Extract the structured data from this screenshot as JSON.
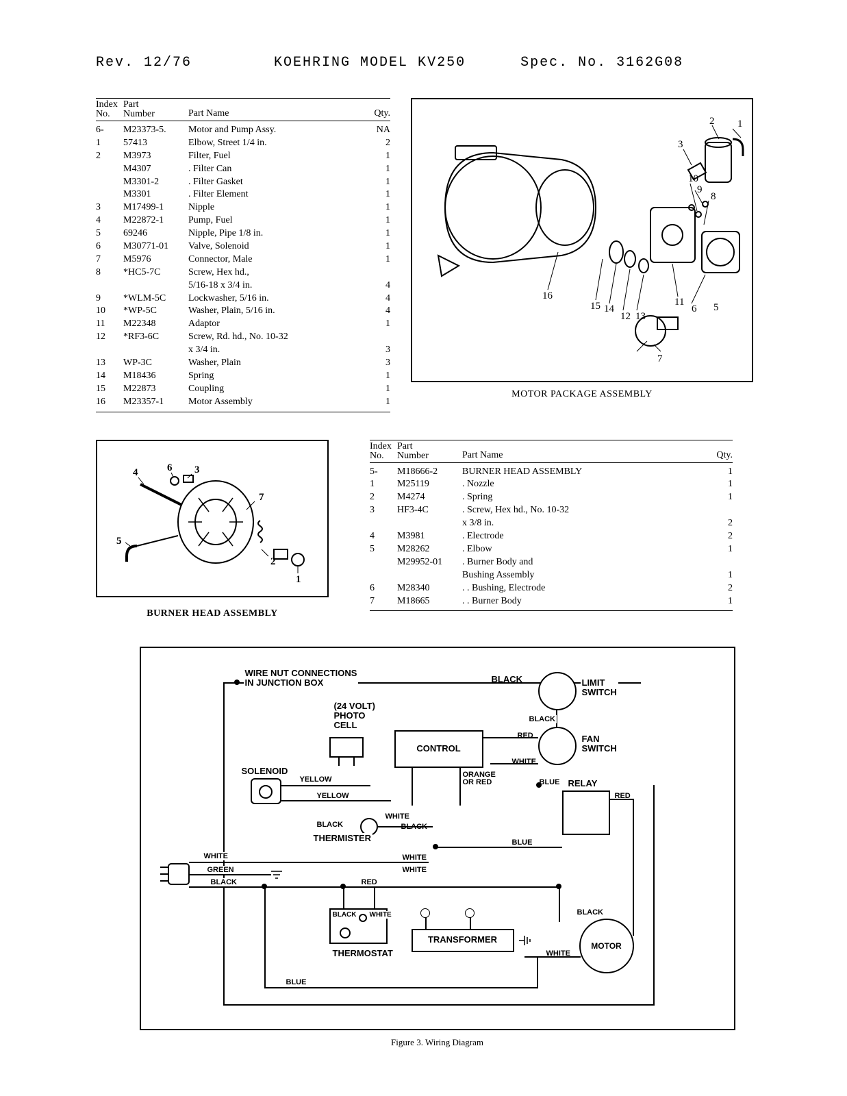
{
  "header": {
    "rev": "Rev. 12/76",
    "model": "KOEHRING MODEL KV250",
    "spec": "Spec. No. 3162G08"
  },
  "table1": {
    "columns": {
      "index_top": "Index",
      "index_bot": "No.",
      "part_top": "Part",
      "part_bot": "Number",
      "name": "Part Name",
      "qty": "Qty."
    },
    "rows": [
      {
        "idx": "6-",
        "num": "M23373-5.",
        "name": "Motor and Pump Assy.",
        "qty": "NA"
      },
      {
        "idx": "1",
        "num": "57413",
        "name": "Elbow, Street 1/4 in.",
        "qty": "2"
      },
      {
        "idx": "2",
        "num": "M3973",
        "name": "Filter, Fuel",
        "qty": "1"
      },
      {
        "idx": "",
        "num": "M4307",
        "name": ". Filter Can",
        "qty": "1"
      },
      {
        "idx": "",
        "num": "M3301-2",
        "name": ". Filter Gasket",
        "qty": "1"
      },
      {
        "idx": "",
        "num": "M3301",
        "name": ". Filter Element",
        "qty": "1"
      },
      {
        "idx": "3",
        "num": "M17499-1",
        "name": "Nipple",
        "qty": "1"
      },
      {
        "idx": "4",
        "num": "M22872-1",
        "name": "Pump, Fuel",
        "qty": "1"
      },
      {
        "idx": "5",
        "num": "69246",
        "name": "Nipple, Pipe 1/8 in.",
        "qty": "1"
      },
      {
        "idx": "6",
        "num": "M30771-01",
        "name": "Valve, Solenoid",
        "qty": "1"
      },
      {
        "idx": "7",
        "num": "M5976",
        "name": "Connector, Male",
        "qty": "1"
      },
      {
        "idx": "8",
        "num": "*HC5-7C",
        "name": "Screw, Hex hd.,",
        "qty": ""
      },
      {
        "idx": "",
        "num": "",
        "name": "5/16-18 x 3/4 in.",
        "qty": "4"
      },
      {
        "idx": "9",
        "num": "*WLM-5C",
        "name": "Lockwasher, 5/16 in.",
        "qty": "4"
      },
      {
        "idx": "10",
        "num": "*WP-5C",
        "name": "Washer, Plain, 5/16 in.",
        "qty": "4"
      },
      {
        "idx": "11",
        "num": "M22348",
        "name": "Adaptor",
        "qty": "1"
      },
      {
        "idx": "12",
        "num": "*RF3-6C",
        "name": "Screw, Rd. hd., No. 10-32",
        "qty": ""
      },
      {
        "idx": "",
        "num": "",
        "name": "x 3/4 in.",
        "qty": "3"
      },
      {
        "idx": "13",
        "num": "WP-3C",
        "name": "Washer, Plain",
        "qty": "3"
      },
      {
        "idx": "14",
        "num": "M18436",
        "name": "Spring",
        "qty": "1"
      },
      {
        "idx": "15",
        "num": "M22873",
        "name": "Coupling",
        "qty": "1"
      },
      {
        "idx": "16",
        "num": "M23357-1",
        "name": "Motor Assembly",
        "qty": "1"
      }
    ]
  },
  "motor_caption": "MOTOR PACKAGE ASSEMBLY",
  "motor_callouts": [
    "1",
    "2",
    "3",
    "5",
    "6",
    "7",
    "8",
    "9",
    "10",
    "11",
    "12",
    "13",
    "14",
    "15",
    "16"
  ],
  "burner_caption": "BURNER HEAD ASSEMBLY",
  "burner_callouts": [
    "1",
    "2",
    "3",
    "4",
    "5",
    "6",
    "7"
  ],
  "table2": {
    "columns": {
      "index_top": "Index",
      "index_bot": "No.",
      "part_top": "Part",
      "part_bot": "Number",
      "name": "Part Name",
      "qty": "Qty."
    },
    "rows": [
      {
        "idx": "5-",
        "num": "M18666-2",
        "name": "BURNER HEAD ASSEMBLY",
        "qty": "1"
      },
      {
        "idx": "1",
        "num": "M25119",
        "name": ". Nozzle",
        "qty": "1"
      },
      {
        "idx": "2",
        "num": "M4274",
        "name": ". Spring",
        "qty": "1"
      },
      {
        "idx": "3",
        "num": "HF3-4C",
        "name": ". Screw, Hex hd., No. 10-32",
        "qty": ""
      },
      {
        "idx": "",
        "num": "",
        "name": "  x 3/8 in.",
        "qty": "2"
      },
      {
        "idx": "4",
        "num": "M3981",
        "name": ". Electrode",
        "qty": "2"
      },
      {
        "idx": "5",
        "num": "M28262",
        "name": ". Elbow",
        "qty": "1"
      },
      {
        "idx": "",
        "num": "M29952-01",
        "name": ". Burner Body and",
        "qty": ""
      },
      {
        "idx": "",
        "num": "",
        "name": "  Bushing Assembly",
        "qty": "1"
      },
      {
        "idx": "6",
        "num": "M28340",
        "name": ". . Bushing, Electrode",
        "qty": "2"
      },
      {
        "idx": "7",
        "num": "M18665",
        "name": ". . Burner Body",
        "qty": "1"
      }
    ]
  },
  "wiring": {
    "caption": "Figure 3.   Wiring Diagram",
    "labels": {
      "wirenut_l1": "WIRE NUT CONNECTIONS",
      "wirenut_l2": "IN JUNCTION BOX",
      "photocell_l1": "(24 VOLT)",
      "photocell_l2": "PHOTO",
      "photocell_l3": "CELL",
      "control": "CONTROL",
      "solenoid": "SOLENOID",
      "thermister": "THERMISTER",
      "thermostat": "THERMOSTAT",
      "transformer": "TRANSFORMER",
      "limitswitch_l1": "LIMIT",
      "limitswitch_l2": "SWITCH",
      "fanswitch_l1": "FAN",
      "fanswitch_l2": "SWITCH",
      "relay": "RELAY",
      "motor": "MOTOR"
    },
    "wires": {
      "black": "BLACK",
      "white": "WHITE",
      "yellow": "YELLOW",
      "orange": "ORANGE",
      "or_red": "OR RED",
      "blue": "BLUE",
      "red": "RED",
      "green": "GREEN"
    }
  },
  "colors": {
    "line": "#000000",
    "bg": "#ffffff"
  }
}
